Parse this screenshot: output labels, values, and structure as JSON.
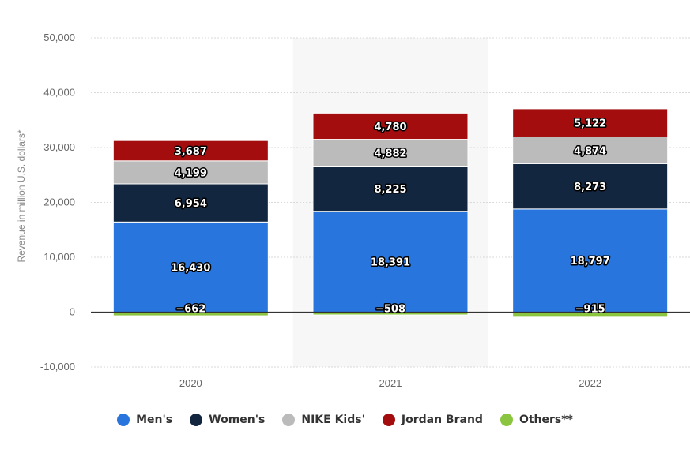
{
  "chart_data": {
    "type": "bar",
    "stacked": true,
    "categories": [
      "2020",
      "2021",
      "2022"
    ],
    "highlighted_category": "2021",
    "ylabel": "Revenue in million U.S. dollars*",
    "ylim": [
      -10000,
      50000
    ],
    "yticks": [
      -10000,
      0,
      10000,
      20000,
      30000,
      40000,
      50000
    ],
    "ytick_labels": [
      "-10,000",
      "0",
      "10,000",
      "20,000",
      "30,000",
      "40,000",
      "50,000"
    ],
    "grid": true,
    "legend_position": "bottom",
    "series": [
      {
        "name": "Men's",
        "color": "#2876dd",
        "values": [
          16430,
          18391,
          18797
        ],
        "labels": [
          "16,430",
          "18,391",
          "18,797"
        ]
      },
      {
        "name": "Women's",
        "color": "#12263f",
        "values": [
          6954,
          8225,
          8273
        ],
        "labels": [
          "6,954",
          "8,225",
          "8,273"
        ]
      },
      {
        "name": "NIKE Kids'",
        "color": "#bbbbbb",
        "values": [
          4199,
          4882,
          4874
        ],
        "labels": [
          "4,199",
          "4,882",
          "4,874"
        ]
      },
      {
        "name": "Jordan Brand",
        "color": "#a30d0d",
        "values": [
          3687,
          4780,
          5122
        ],
        "labels": [
          "3,687",
          "4,780",
          "5,122"
        ]
      },
      {
        "name": "Others**",
        "color": "#8bc53f",
        "values": [
          -662,
          -508,
          -915
        ],
        "labels": [
          "-662",
          "-508",
          "-915"
        ]
      }
    ]
  }
}
